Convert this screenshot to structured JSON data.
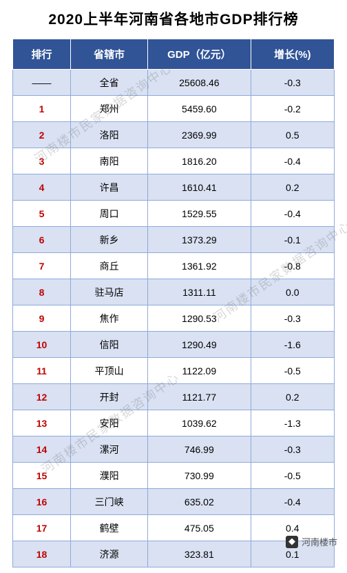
{
  "title": "2020上半年河南省各地市GDP排行榜",
  "table": {
    "type": "table",
    "header_bg": "#305496",
    "header_text_color": "#ffffff",
    "row_alt_bg": "#d9e1f2",
    "row_bg": "#ffffff",
    "border_color": "#8ea9db",
    "rank_color": "#c00000",
    "columns": [
      {
        "label": "排行",
        "width": "18%"
      },
      {
        "label": "省辖市",
        "width": "24%"
      },
      {
        "label": "GDP（亿元）",
        "width": "32%"
      },
      {
        "label": "增长(%)",
        "width": "26%"
      }
    ],
    "rows": [
      {
        "rank": "——",
        "city": "全省",
        "gdp": "25608.46",
        "growth": "-0.3",
        "rank_styled": false
      },
      {
        "rank": "1",
        "city": "郑州",
        "gdp": "5459.60",
        "growth": "-0.2",
        "rank_styled": true
      },
      {
        "rank": "2",
        "city": "洛阳",
        "gdp": "2369.99",
        "growth": "0.5",
        "rank_styled": true
      },
      {
        "rank": "3",
        "city": "南阳",
        "gdp": "1816.20",
        "growth": "-0.4",
        "rank_styled": true
      },
      {
        "rank": "4",
        "city": "许昌",
        "gdp": "1610.41",
        "growth": "0.2",
        "rank_styled": true
      },
      {
        "rank": "5",
        "city": "周口",
        "gdp": "1529.55",
        "growth": "-0.4",
        "rank_styled": true
      },
      {
        "rank": "6",
        "city": "新乡",
        "gdp": "1373.29",
        "growth": "-0.1",
        "rank_styled": true
      },
      {
        "rank": "7",
        "city": "商丘",
        "gdp": "1361.92",
        "growth": "-0.8",
        "rank_styled": true
      },
      {
        "rank": "8",
        "city": "驻马店",
        "gdp": "1311.11",
        "growth": "0.0",
        "rank_styled": true
      },
      {
        "rank": "9",
        "city": "焦作",
        "gdp": "1290.53",
        "growth": "-0.3",
        "rank_styled": true
      },
      {
        "rank": "10",
        "city": "信阳",
        "gdp": "1290.49",
        "growth": "-1.6",
        "rank_styled": true
      },
      {
        "rank": "11",
        "city": "平顶山",
        "gdp": "1122.09",
        "growth": "-0.5",
        "rank_styled": true
      },
      {
        "rank": "12",
        "city": "开封",
        "gdp": "1121.77",
        "growth": "0.2",
        "rank_styled": true
      },
      {
        "rank": "13",
        "city": "安阳",
        "gdp": "1039.62",
        "growth": "-1.3",
        "rank_styled": true
      },
      {
        "rank": "14",
        "city": "漯河",
        "gdp": "746.99",
        "growth": "-0.3",
        "rank_styled": true
      },
      {
        "rank": "15",
        "city": "濮阳",
        "gdp": "730.99",
        "growth": "-0.5",
        "rank_styled": true
      },
      {
        "rank": "16",
        "city": "三门峡",
        "gdp": "635.02",
        "growth": "-0.4",
        "rank_styled": true
      },
      {
        "rank": "17",
        "city": "鹤壁",
        "gdp": "475.05",
        "growth": "0.4",
        "rank_styled": true
      },
      {
        "rank": "18",
        "city": "济源",
        "gdp": "323.81",
        "growth": "0.1",
        "rank_styled": true
      }
    ]
  },
  "watermark_text": "河南楼市民家数据咨询中心",
  "footer_text": "河南楼市",
  "colors": {
    "title_color": "#000000",
    "background": "#ffffff",
    "watermark_color": "rgba(100,100,100,0.25)"
  },
  "typography": {
    "title_fontsize": 21,
    "header_fontsize": 15,
    "cell_fontsize": 14,
    "footer_fontsize": 13
  }
}
